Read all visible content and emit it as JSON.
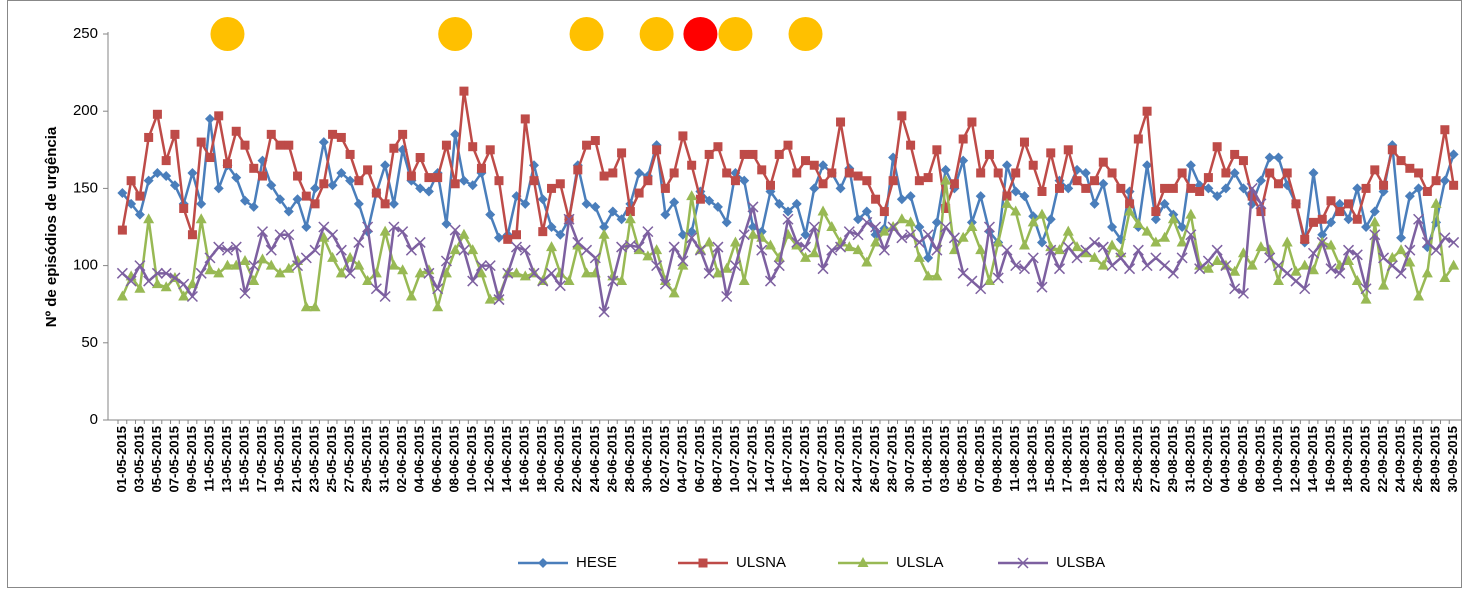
{
  "chart_data": {
    "type": "line",
    "y_label": "Nº de episódios de urgência",
    "ylim": [
      0,
      250
    ],
    "yticks": [
      0,
      50,
      100,
      150,
      200,
      250
    ],
    "categories": [
      "01-05-2015",
      null,
      "03-05-2015",
      null,
      "05-05-2015",
      null,
      "07-05-2015",
      null,
      "09-05-2015",
      null,
      "11-05-2015",
      null,
      "13-05-2015",
      null,
      "15-05-2015",
      null,
      "17-05-2015",
      null,
      "19-05-2015",
      null,
      "21-05-2015",
      null,
      "23-05-2015",
      null,
      "25-05-2015",
      null,
      "27-05-2015",
      null,
      "29-05-2015",
      null,
      "31-05-2015",
      null,
      "02-06-2015",
      null,
      "04-06-2015",
      null,
      "06-06-2015",
      null,
      "08-06-2015",
      null,
      "10-06-2015",
      null,
      "12-06-2015",
      null,
      "14-06-2015",
      null,
      "16-06-2015",
      null,
      "18-06-2015",
      null,
      "20-06-2015",
      null,
      "22-06-2015",
      null,
      "24-06-2015",
      null,
      "26-06-2015",
      null,
      "28-06-2015",
      null,
      "30-06-2015",
      null,
      "02-07-2015",
      null,
      "04-07-2015",
      null,
      "06-07-2015",
      null,
      "08-07-2015",
      null,
      "10-07-2015",
      null,
      "12-07-2015",
      null,
      "14-07-2015",
      null,
      "16-07-2015",
      null,
      "18-07-2015",
      null,
      "20-07-2015",
      null,
      "22-07-2015",
      null,
      "24-07-2015",
      null,
      "26-07-2015",
      null,
      "28-07-2015",
      null,
      "30-07-2015",
      null,
      "01-08-2015",
      null,
      "03-08-2015",
      null,
      "05-08-2015",
      null,
      "07-08-2015",
      null,
      "09-08-2015",
      null,
      "11-08-2015",
      null,
      "13-08-2015",
      null,
      "15-08-2015",
      null,
      "17-08-2015",
      null,
      "19-08-2015",
      null,
      "21-08-2015",
      null,
      "23-08-2015",
      null,
      "25-08-2015",
      null,
      "27-08-2015",
      null,
      "29-08-2015",
      null,
      "31-08-2015",
      null,
      "02-09-2015",
      null,
      "04-09-2015",
      null,
      "06-09-2015",
      null,
      "08-09-2015",
      null,
      "10-09-2015",
      null,
      "12-09-2015",
      null,
      "14-09-2015",
      null,
      "16-09-2015",
      null,
      "18-09-2015",
      null,
      "20-09-2015",
      null,
      "22-09-2015",
      null,
      "24-09-2015",
      null,
      "26-09-2015",
      null,
      "28-09-2015",
      null,
      "30-09-2015"
    ],
    "series": [
      {
        "name": "HESE",
        "color": "#4a7ebb",
        "marker": "diamond",
        "values": [
          147,
          140,
          133,
          155,
          160,
          158,
          152,
          140,
          160,
          140,
          195,
          150,
          165,
          157,
          142,
          138,
          168,
          152,
          143,
          135,
          143,
          125,
          150,
          180,
          152,
          160,
          155,
          140,
          122,
          147,
          165,
          140,
          175,
          155,
          150,
          148,
          160,
          127,
          185,
          155,
          152,
          160,
          133,
          118,
          120,
          145,
          140,
          165,
          143,
          125,
          120,
          130,
          165,
          140,
          138,
          125,
          135,
          130,
          140,
          160,
          158,
          178,
          133,
          141,
          120,
          122,
          148,
          142,
          138,
          128,
          160,
          155,
          125,
          122,
          148,
          140,
          135,
          140,
          120,
          150,
          165,
          160,
          150,
          163,
          130,
          135,
          120,
          124,
          170,
          143,
          145,
          125,
          105,
          128,
          162,
          150,
          168,
          128,
          145,
          122,
          115,
          165,
          148,
          145,
          132,
          115,
          130,
          155,
          150,
          162,
          160,
          140,
          153,
          125,
          117,
          148,
          125,
          165,
          130,
          140,
          133,
          125,
          165,
          152,
          150,
          145,
          150,
          160,
          150,
          140,
          155,
          170,
          170,
          152,
          140,
          115,
          160,
          120,
          128,
          140,
          130,
          150,
          125,
          135,
          148,
          178,
          118,
          145,
          150,
          112,
          128,
          155,
          172
        ]
      },
      {
        "name": "ULSNA",
        "color": "#be4b48",
        "marker": "square",
        "values": [
          123,
          155,
          145,
          183,
          198,
          168,
          185,
          137,
          120,
          180,
          170,
          197,
          166,
          187,
          178,
          163,
          158,
          185,
          178,
          178,
          158,
          145,
          140,
          153,
          185,
          183,
          172,
          155,
          162,
          147,
          140,
          176,
          185,
          158,
          170,
          157,
          157,
          178,
          153,
          213,
          177,
          163,
          175,
          155,
          117,
          120,
          195,
          155,
          122,
          150,
          153,
          130,
          162,
          178,
          181,
          158,
          160,
          173,
          135,
          147,
          155,
          175,
          150,
          160,
          184,
          165,
          143,
          172,
          177,
          160,
          155,
          172,
          172,
          162,
          152,
          172,
          178,
          160,
          168,
          165,
          153,
          160,
          193,
          160,
          158,
          155,
          143,
          135,
          155,
          197,
          178,
          155,
          157,
          175,
          137,
          153,
          182,
          193,
          160,
          172,
          160,
          145,
          160,
          180,
          165,
          148,
          173,
          150,
          175,
          155,
          150,
          155,
          167,
          160,
          150,
          140,
          182,
          200,
          135,
          150,
          150,
          160,
          150,
          148,
          157,
          177,
          160,
          172,
          168,
          145,
          135,
          160,
          153,
          160,
          140,
          117,
          128,
          130,
          142,
          135,
          140,
          130,
          150,
          162,
          152,
          175,
          168,
          163,
          160,
          148,
          155,
          188,
          152
        ]
      },
      {
        "name": "ULSLA",
        "color": "#98b954",
        "marker": "triangle",
        "values": [
          80,
          93,
          85,
          130,
          88,
          86,
          92,
          80,
          88,
          130,
          97,
          95,
          100,
          100,
          103,
          90,
          104,
          100,
          95,
          98,
          103,
          73,
          73,
          118,
          105,
          95,
          105,
          100,
          90,
          95,
          122,
          100,
          97,
          80,
          95,
          97,
          73,
          95,
          110,
          120,
          110,
          95,
          78,
          80,
          95,
          95,
          93,
          95,
          90,
          112,
          95,
          90,
          113,
          95,
          95,
          120,
          93,
          90,
          130,
          110,
          106,
          110,
          90,
          82,
          100,
          145,
          110,
          115,
          95,
          98,
          115,
          90,
          120,
          118,
          113,
          105,
          120,
          113,
          105,
          108,
          135,
          125,
          115,
          112,
          110,
          102,
          115,
          122,
          125,
          130,
          128,
          105,
          93,
          93,
          155,
          110,
          118,
          125,
          110,
          90,
          115,
          140,
          135,
          113,
          128,
          133,
          112,
          110,
          122,
          112,
          108,
          105,
          100,
          113,
          108,
          135,
          127,
          122,
          115,
          118,
          130,
          115,
          133,
          100,
          98,
          103,
          100,
          96,
          108,
          100,
          112,
          110,
          90,
          115,
          96,
          100,
          97,
          115,
          113,
          100,
          103,
          90,
          78,
          128,
          87,
          105,
          110,
          102,
          80,
          95,
          140,
          92,
          100
        ]
      },
      {
        "name": "ULSBA",
        "color": "#7d60a0",
        "marker": "x",
        "values": [
          95,
          90,
          100,
          90,
          95,
          95,
          92,
          88,
          80,
          95,
          105,
          112,
          110,
          112,
          82,
          100,
          122,
          110,
          120,
          120,
          100,
          105,
          110,
          125,
          120,
          110,
          95,
          115,
          125,
          85,
          80,
          125,
          122,
          110,
          115,
          95,
          85,
          103,
          123,
          110,
          90,
          100,
          100,
          78,
          95,
          112,
          110,
          95,
          90,
          95,
          87,
          130,
          115,
          110,
          105,
          70,
          90,
          112,
          113,
          112,
          122,
          100,
          88,
          112,
          103,
          118,
          110,
          95,
          112,
          80,
          100,
          120,
          138,
          110,
          90,
          100,
          130,
          115,
          112,
          125,
          98,
          110,
          112,
          122,
          120,
          128,
          125,
          110,
          125,
          118,
          120,
          115,
          120,
          110,
          125,
          118,
          95,
          90,
          85,
          125,
          92,
          110,
          100,
          98,
          105,
          86,
          110,
          98,
          112,
          105,
          110,
          115,
          112,
          100,
          105,
          98,
          110,
          100,
          105,
          100,
          95,
          105,
          120,
          98,
          103,
          110,
          100,
          85,
          82,
          150,
          140,
          105,
          100,
          95,
          90,
          85,
          108,
          115,
          98,
          95,
          110,
          107,
          85,
          120,
          105,
          100,
          95,
          110,
          130,
          115,
          110,
          118,
          115
        ]
      }
    ],
    "markers": [
      {
        "color": "#ffc000",
        "values": [
          null,
          null,
          null,
          null,
          null,
          null,
          null,
          null,
          null,
          null,
          null,
          null,
          250,
          null,
          null,
          null,
          null,
          null,
          null,
          null,
          null,
          null,
          null,
          null,
          null,
          null,
          null,
          null,
          null,
          null,
          null,
          null,
          null,
          null,
          null,
          null,
          null,
          null,
          250,
          null,
          null,
          null,
          null,
          null,
          null,
          null,
          null,
          null,
          null,
          null,
          null,
          null,
          null,
          250,
          null,
          null,
          null,
          null,
          null,
          null,
          null,
          250,
          null,
          null,
          null,
          null,
          null,
          null,
          null,
          null,
          250,
          null,
          null,
          null,
          null,
          null,
          null,
          null,
          250,
          null,
          null,
          null,
          null,
          null,
          null,
          null,
          null,
          null,
          null,
          null,
          null,
          null,
          null,
          null,
          null,
          null,
          null,
          null,
          null,
          null,
          null,
          null,
          null,
          null,
          null,
          null,
          null,
          null,
          null,
          null,
          null,
          null,
          null,
          null,
          null,
          null,
          null,
          null,
          null,
          null,
          null,
          null,
          null,
          null,
          null,
          null,
          null,
          null,
          null,
          null,
          null,
          null,
          null,
          null,
          null,
          null,
          null,
          null,
          null,
          null,
          null,
          null,
          null,
          null,
          null,
          null,
          null,
          null,
          null,
          null,
          null,
          null,
          null
        ]
      },
      {
        "color": "#ff0000",
        "values": [
          null,
          null,
          null,
          null,
          null,
          null,
          null,
          null,
          null,
          null,
          null,
          null,
          null,
          null,
          null,
          null,
          null,
          null,
          null,
          null,
          null,
          null,
          null,
          null,
          null,
          null,
          null,
          null,
          null,
          null,
          null,
          null,
          null,
          null,
          null,
          null,
          null,
          null,
          null,
          null,
          null,
          null,
          null,
          null,
          null,
          null,
          null,
          null,
          null,
          null,
          null,
          null,
          null,
          null,
          null,
          null,
          null,
          null,
          null,
          null,
          null,
          null,
          null,
          null,
          null,
          null,
          250,
          null,
          null,
          null,
          null,
          null,
          null,
          null,
          null,
          null,
          null,
          null,
          null,
          null,
          null,
          null,
          null,
          null,
          null,
          null,
          null,
          null,
          null,
          null,
          null,
          null,
          null,
          null,
          null,
          null,
          null,
          null,
          null,
          null,
          null,
          null,
          null,
          null,
          null,
          null,
          null,
          null,
          null,
          null,
          null,
          null,
          null,
          null,
          null,
          null,
          null,
          null,
          null,
          null,
          null,
          null,
          null,
          null,
          null,
          null,
          null,
          null,
          null,
          null,
          null,
          null,
          null,
          null,
          null,
          null,
          null,
          null,
          null,
          null,
          null,
          null,
          null,
          null,
          null,
          null,
          null,
          null,
          null,
          null,
          null,
          null,
          null
        ]
      }
    ],
    "legend": "bottom"
  }
}
